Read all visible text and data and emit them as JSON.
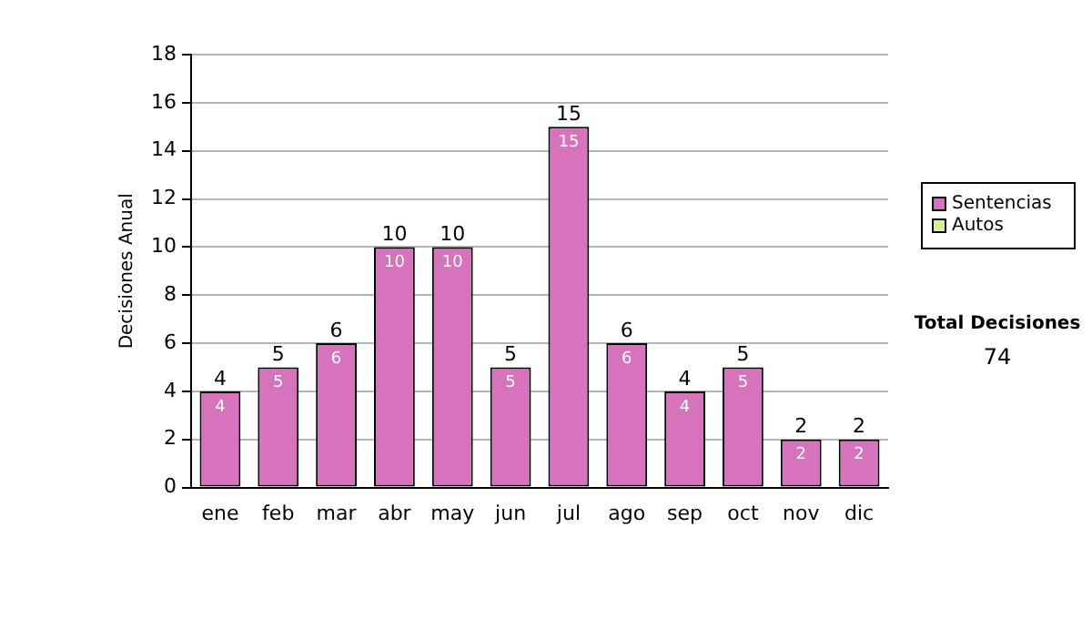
{
  "chart_data": {
    "type": "bar",
    "ylabel": "Decisiones Anual",
    "categories": [
      "ene",
      "feb",
      "mar",
      "abr",
      "may",
      "jun",
      "jul",
      "ago",
      "sep",
      "oct",
      "nov",
      "dic"
    ],
    "series": [
      {
        "name": "Sentencias",
        "color": "#d772bc",
        "values": [
          4,
          5,
          6,
          10,
          10,
          5,
          15,
          6,
          4,
          5,
          2,
          2
        ],
        "value_labels": [
          "4",
          "5",
          "6",
          "10",
          "10",
          "5",
          "15",
          "6",
          "4",
          "5",
          "2",
          "2"
        ]
      },
      {
        "name": "Autos",
        "color": "#d9ec9c",
        "values": [
          0,
          0,
          0,
          0,
          0,
          0,
          0,
          0,
          0,
          0,
          0,
          0
        ]
      }
    ],
    "stacked": true,
    "totals": [
      "4",
      "5",
      "6",
      "10",
      "10",
      "5",
      "15",
      "6",
      "4",
      "5",
      "2",
      "2"
    ],
    "ylim": [
      0,
      18
    ],
    "yticks": [
      0,
      2,
      4,
      6,
      8,
      10,
      12,
      14,
      16,
      18
    ],
    "grid": "y",
    "legend": "right",
    "annotations": [
      "Total Decisiones",
      "74"
    ]
  }
}
